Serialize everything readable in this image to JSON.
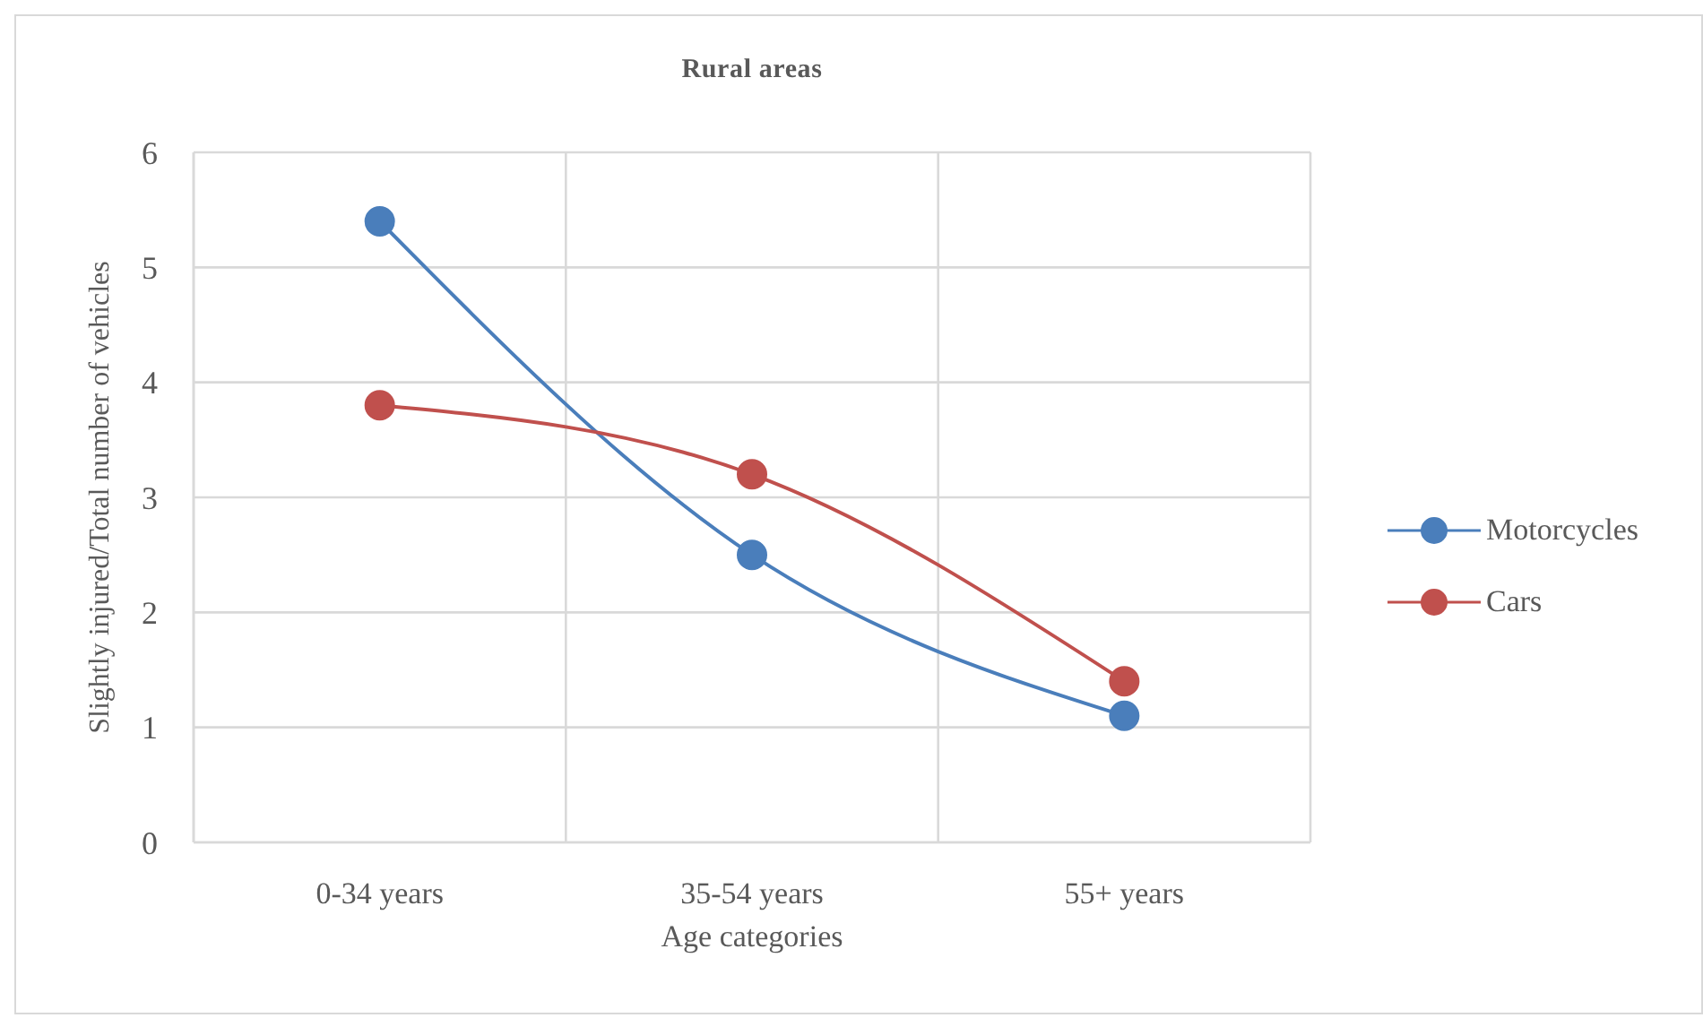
{
  "chart_data": {
    "type": "line",
    "title": "Rural areas",
    "xlabel": "Age categories",
    "ylabel": "Slightly injured/Total number of vehicles",
    "categories": [
      "0-34 years",
      "35-54 years",
      "55+ years"
    ],
    "series": [
      {
        "name": "Motorcycles",
        "color": "#4a7ebb",
        "values": [
          5.4,
          2.5,
          1.1
        ]
      },
      {
        "name": "Cars",
        "color": "#c0504d",
        "values": [
          3.8,
          3.2,
          1.4
        ]
      }
    ],
    "ylim": [
      0,
      6
    ],
    "yticks": [
      0,
      1,
      2,
      3,
      4,
      5,
      6
    ],
    "grid": true,
    "legend": "right",
    "marker": "circle",
    "line_style": "solid"
  }
}
